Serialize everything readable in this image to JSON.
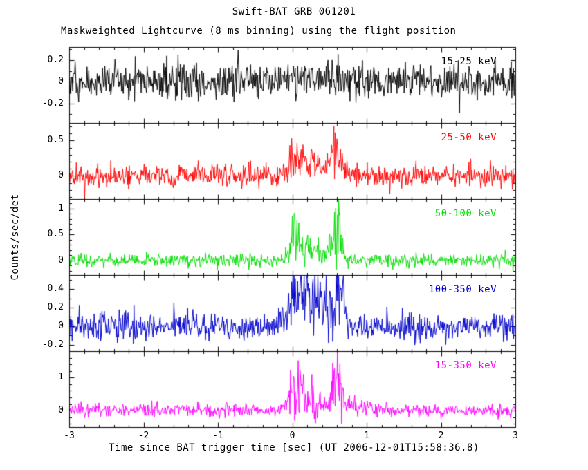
{
  "chart_data": {
    "type": "line",
    "title": "Swift-BAT GRB 061201",
    "subtitle": "Maskweighted Lightcurve (8 ms binning) using the flight position",
    "xlabel": "Time since BAT trigger time [sec] (UT 2006-12-01T15:58:36.8)",
    "ylabel": "Counts/sec/det",
    "xlim": [
      -3,
      3
    ],
    "bin_seconds": 0.008,
    "grid": false,
    "x_ticks": {
      "values": [
        -3,
        -2,
        -1,
        0,
        1,
        2,
        3
      ],
      "labels": [
        "-3",
        "-2",
        "-1",
        "0",
        "1",
        "2",
        "3"
      ],
      "minor_step": 0.2
    },
    "panels": [
      {
        "label": "15-25 keV",
        "color": "#000000",
        "ylim": [
          -0.38,
          0.32
        ],
        "y_ticks": {
          "values": [
            -0.2,
            0,
            0.2
          ],
          "labels": [
            "-0.2",
            "0",
            "0.2"
          ],
          "minor_step": 0.1
        },
        "noise_sigma": 0.085,
        "burst_peaks": [
          {
            "t": 0.1,
            "amp": 0.05,
            "width": 0.15
          },
          {
            "t": 0.6,
            "amp": 0.05,
            "width": 0.08
          }
        ],
        "seed": 11
      },
      {
        "label": "25-50 keV",
        "color": "#ff0000",
        "ylim": [
          -0.33,
          0.75
        ],
        "y_ticks": {
          "values": [
            0,
            0.5
          ],
          "labels": [
            "0",
            "0.5"
          ],
          "minor_step": 0.1
        },
        "noise_sigma": 0.075,
        "burst_peaks": [
          {
            "t": 0.07,
            "amp": 0.22,
            "width": 0.09
          },
          {
            "t": 0.32,
            "amp": 0.12,
            "width": 0.18
          },
          {
            "t": 0.58,
            "amp": 0.28,
            "width": 0.07
          }
        ],
        "seed": 22
      },
      {
        "label": "50-100 keV",
        "color": "#00dd00",
        "ylim": [
          -0.28,
          1.18
        ],
        "y_ticks": {
          "values": [
            0,
            0.5,
            1
          ],
          "labels": [
            "0",
            "0.5",
            "1"
          ],
          "minor_step": 0.1
        },
        "noise_sigma": 0.065,
        "burst_peaks": [
          {
            "t": 0.07,
            "amp": 0.35,
            "width": 0.08
          },
          {
            "t": 0.3,
            "amp": 0.18,
            "width": 0.18
          },
          {
            "t": 0.6,
            "amp": 0.5,
            "width": 0.05
          }
        ],
        "seed": 33
      },
      {
        "label": "100-350 keV",
        "color": "#0000cc",
        "ylim": [
          -0.27,
          0.55
        ],
        "y_ticks": {
          "values": [
            -0.2,
            0,
            0.2,
            0.4
          ],
          "labels": [
            "-0.2",
            "0",
            "0.2",
            "0.4"
          ],
          "minor_step": 0.1
        },
        "noise_sigma": 0.075,
        "burst_peaks": [
          {
            "t": 0.1,
            "amp": 0.28,
            "width": 0.12
          },
          {
            "t": 0.35,
            "amp": 0.22,
            "width": 0.15
          },
          {
            "t": 0.6,
            "amp": 0.3,
            "width": 0.08
          }
        ],
        "seed": 44
      },
      {
        "label": "15-350 keV",
        "color": "#ff00ff",
        "ylim": [
          -0.5,
          1.8
        ],
        "y_ticks": {
          "values": [
            0,
            1
          ],
          "labels": [
            "0",
            "1"
          ],
          "minor_step": 0.2
        },
        "noise_sigma": 0.1,
        "burst_peaks": [
          {
            "t": 0.07,
            "amp": 0.6,
            "width": 0.09
          },
          {
            "t": 0.3,
            "amp": 0.3,
            "width": 0.2
          },
          {
            "t": 0.6,
            "amp": 0.85,
            "width": 0.05
          },
          {
            "t": 0.9,
            "amp": 0.12,
            "width": 0.2
          }
        ],
        "seed": 55
      }
    ]
  }
}
